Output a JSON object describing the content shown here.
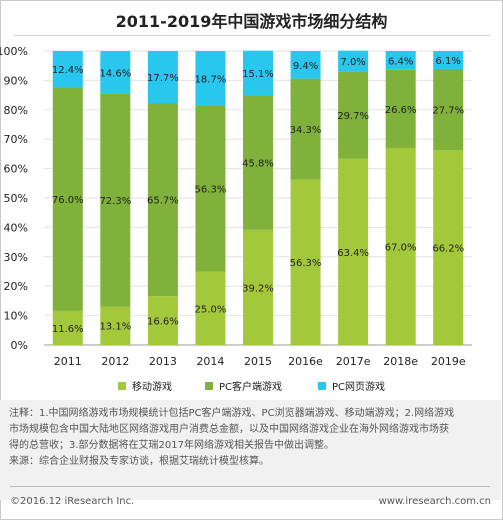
{
  "title": "2011-2019年中国游戏市场细分结构",
  "colors": {
    "mobile": "#a4c83c",
    "pc_client": "#7fb13b",
    "pc_web": "#29c6ee"
  },
  "chart_data": {
    "type": "bar",
    "stacked": true,
    "categories": [
      "2011",
      "2012",
      "2013",
      "2014",
      "2015",
      "2016e",
      "2017e",
      "2018e",
      "2019e"
    ],
    "series": [
      {
        "name": "移动游戏",
        "values": [
          11.6,
          13.1,
          16.6,
          25.0,
          39.2,
          56.3,
          63.4,
          67.0,
          66.2
        ],
        "labels": [
          "11.6%",
          "13.1%",
          "16.6%",
          "25.0%",
          "39.2%",
          "56.3%",
          "63.4%",
          "67.0%",
          "66.2%"
        ]
      },
      {
        "name": "PC客户端游戏",
        "values": [
          76.0,
          72.3,
          65.7,
          56.3,
          45.8,
          34.3,
          29.7,
          26.6,
          27.7
        ],
        "labels": [
          "76.0%",
          "72.3%",
          "65.7%",
          "56.3%",
          "45.8%",
          "34.3%",
          "29.7%",
          "26.6%",
          "27.7%"
        ]
      },
      {
        "name": "PC网页游戏",
        "values": [
          12.4,
          14.6,
          17.7,
          18.7,
          15.1,
          9.4,
          7.0,
          6.4,
          6.1
        ],
        "labels": [
          "12.4%",
          "14.6%",
          "17.7%",
          "18.7%",
          "15.1%",
          "9.4%",
          "7.0%",
          "6.4%",
          "6.1%"
        ]
      }
    ],
    "ylim": [
      0,
      100
    ],
    "yticks": [
      "0%",
      "10%",
      "20%",
      "30%",
      "40%",
      "50%",
      "60%",
      "70%",
      "80%",
      "90%",
      "100%"
    ],
    "grid": true,
    "legend": "bottom"
  },
  "notes": {
    "line1": "注释：1.中国网络游戏市场规模统计包括PC客户端游戏、PC浏览器端游戏、移动端游戏；2.网络游戏",
    "line2": "市场规模包含中国大陆地区网络游戏用户消费总金额，以及中国网络游戏企业在海外网络游戏市场获",
    "line3": "得的总营收；3.部分数据将在艾瑞2017年网络游戏相关报告中做出调整。",
    "source": "来源：综合企业财报及专家访谈，根据艾瑞统计模型核算。"
  },
  "footer": {
    "left": "©2016.12 iResearch Inc.",
    "right": "www.iresearch.com.cn"
  }
}
